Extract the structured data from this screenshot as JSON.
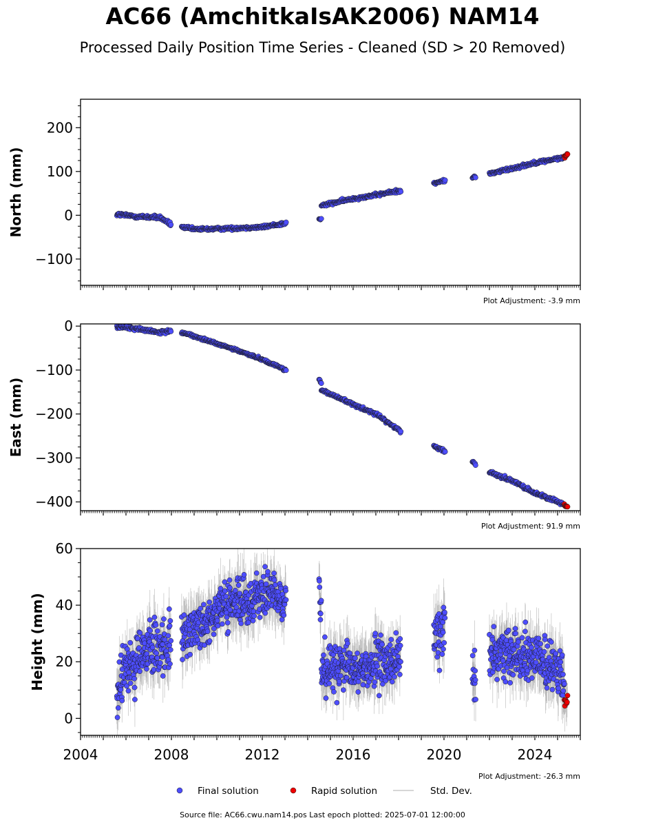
{
  "title": "AC66 (AmchitkaIsAK2006) NAM14",
  "subtitle": "Processed Daily Position Time Series - Cleaned (SD > 20 Removed)",
  "source_text": "Source file: AC66.cwu.nam14.pos  Last epoch plotted: 2025-07-01 12:00:00",
  "colors": {
    "final": "#4d4dff",
    "rapid": "#ee0000",
    "marker_edge": "#1a1a1a",
    "std_dev": "#9a9a9a",
    "axis": "#000000"
  },
  "legend": {
    "placement": "bottom-center",
    "items": [
      {
        "label": "Final solution",
        "kind": "marker",
        "color": "#4d4dff"
      },
      {
        "label": "Rapid solution",
        "kind": "marker",
        "color": "#ee0000"
      },
      {
        "label": "Std. Dev.",
        "kind": "line",
        "color": "#c8c8c8"
      }
    ]
  },
  "chart_data": [
    {
      "type": "scatter",
      "ylabel": "North (mm)",
      "ylim": [
        -160,
        265
      ],
      "yticks": [
        -100,
        0,
        100,
        200
      ],
      "xlim": [
        2004.0,
        2026.0
      ],
      "adjustment_label": "Plot Adjustment: -3.9 mm",
      "segments": [
        {
          "x": [
            2005.6,
            2006.5,
            2007.5,
            2007.98
          ],
          "y": [
            2,
            -3,
            -5,
            -21
          ],
          "noise": 3
        },
        {
          "x": [
            2008.45,
            2009.0,
            2010.0,
            2011.0,
            2012.0,
            2013.05
          ],
          "y": [
            -27,
            -32,
            -31,
            -29,
            -27,
            -18
          ],
          "noise": 2.5
        },
        {
          "x": [
            2014.5,
            2014.6
          ],
          "y": [
            -9,
            -9
          ],
          "noise": 1.5
        },
        {
          "x": [
            2014.6,
            2016.0,
            2017.0,
            2018.1
          ],
          "y": [
            22,
            38,
            46,
            57
          ],
          "noise": 2.5
        },
        {
          "x": [
            2019.55,
            2020.05
          ],
          "y": [
            72,
            80
          ],
          "noise": 2.5
        },
        {
          "x": [
            2021.25,
            2021.4
          ],
          "y": [
            86,
            88
          ],
          "noise": 2
        },
        {
          "x": [
            2022.0,
            2023.0,
            2024.0,
            2025.3
          ],
          "y": [
            95,
            107,
            120,
            132
          ],
          "noise": 2.5
        }
      ],
      "rapid": {
        "x": [
          2025.3,
          2025.45
        ],
        "y": [
          134,
          139
        ],
        "noise": 2
      }
    },
    {
      "type": "scatter",
      "ylabel": "East (mm)",
      "ylim": [
        -420,
        5
      ],
      "yticks": [
        -400,
        -300,
        -200,
        -100,
        0
      ],
      "xlim": [
        2004.0,
        2026.0
      ],
      "adjustment_label": "Plot Adjustment: 91.9 mm",
      "segments": [
        {
          "x": [
            2005.6,
            2006.5,
            2007.5,
            2007.98
          ],
          "y": [
            -1,
            -6,
            -15,
            -10
          ],
          "noise": 2.5
        },
        {
          "x": [
            2008.45,
            2009.0,
            2010.0,
            2011.0,
            2012.0,
            2013.05
          ],
          "y": [
            -14,
            -23,
            -40,
            -57,
            -76,
            -100
          ],
          "noise": 2
        },
        {
          "x": [
            2014.5,
            2014.6
          ],
          "y": [
            -122,
            -130
          ],
          "noise": 2
        },
        {
          "x": [
            2014.6,
            2015.0,
            2016.0,
            2017.0,
            2018.1
          ],
          "y": [
            -145,
            -155,
            -178,
            -200,
            -240
          ],
          "noise": 2.5
        },
        {
          "x": [
            2019.55,
            2020.05
          ],
          "y": [
            -272,
            -285
          ],
          "noise": 3
        },
        {
          "x": [
            2021.25,
            2021.4
          ],
          "y": [
            -308,
            -315
          ],
          "noise": 2
        },
        {
          "x": [
            2022.0,
            2023.0,
            2024.0,
            2025.3
          ],
          "y": [
            -332,
            -352,
            -380,
            -405
          ],
          "noise": 2.5
        }
      ],
      "rapid": {
        "x": [
          2025.3,
          2025.45
        ],
        "y": [
          -407,
          -413
        ],
        "noise": 2
      }
    },
    {
      "type": "scatter",
      "ylabel": "Height (mm)",
      "ylim": [
        -6,
        60
      ],
      "yticks": [
        0,
        20,
        40,
        60
      ],
      "xlim": [
        2004.0,
        2026.0
      ],
      "xticks": [
        2004,
        2008,
        2012,
        2016,
        2020,
        2024
      ],
      "adjustment_label": "Plot Adjustment: -26.3 mm",
      "segments": [
        {
          "x": [
            2005.6,
            2006.0,
            2007.0,
            2007.98
          ],
          "y": [
            8,
            18,
            24,
            26
          ],
          "noise": 7
        },
        {
          "x": [
            2008.45,
            2009.0,
            2010.0,
            2011.0,
            2012.0,
            2013.05
          ],
          "y": [
            27,
            31,
            38,
            41,
            44,
            42
          ],
          "noise": 6
        },
        {
          "x": [
            2014.5,
            2014.6
          ],
          "y": [
            44,
            38
          ],
          "noise": 6
        },
        {
          "x": [
            2014.6,
            2016.0,
            2017.0,
            2018.1
          ],
          "y": [
            18,
            17,
            19,
            21
          ],
          "noise": 6
        },
        {
          "x": [
            2019.55,
            2020.05
          ],
          "y": [
            28,
            32
          ],
          "noise": 7
        },
        {
          "x": [
            2021.25,
            2021.4
          ],
          "y": [
            15,
            15
          ],
          "noise": 6
        },
        {
          "x": [
            2022.0,
            2023.0,
            2024.0,
            2025.3
          ],
          "y": [
            22,
            24,
            22,
            14
          ],
          "noise": 6
        }
      ],
      "rapid": {
        "x": [
          2025.3,
          2025.45
        ],
        "y": [
          5,
          7
        ],
        "noise": 2
      }
    }
  ]
}
